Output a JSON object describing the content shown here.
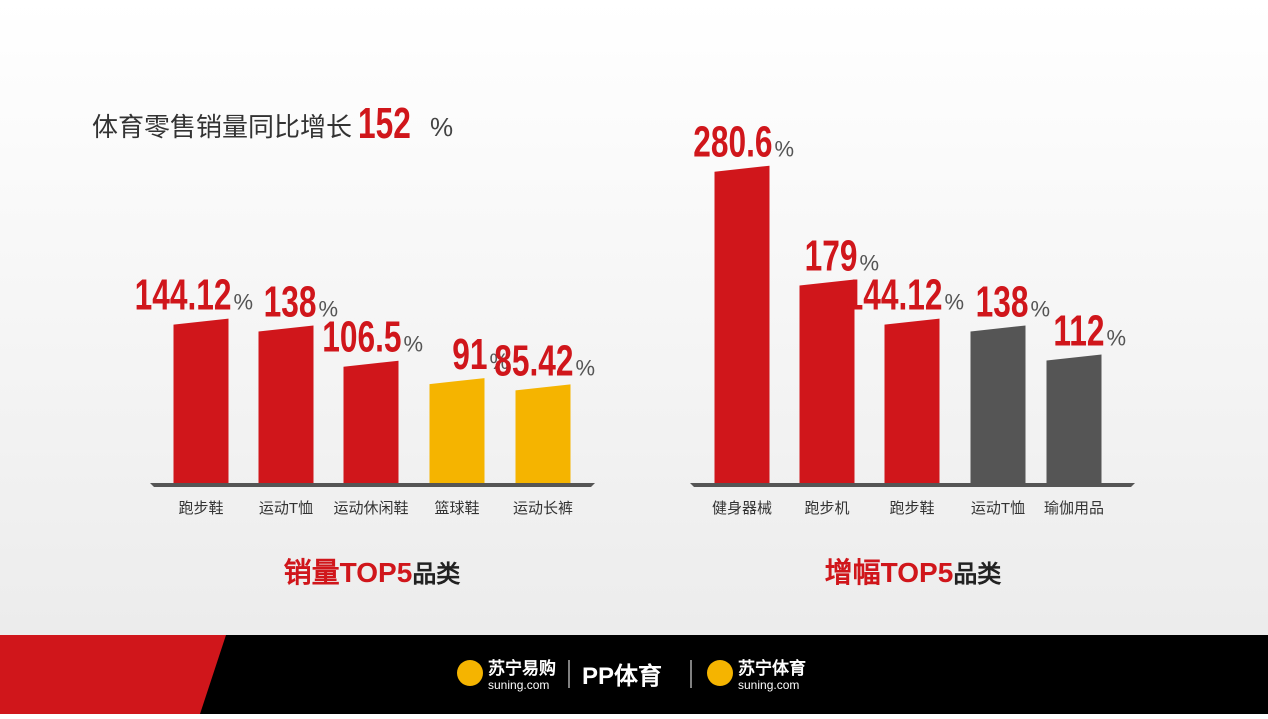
{
  "headline": {
    "text": "体育零售销量同比增长",
    "value": 152,
    "unit": "%"
  },
  "chart_data": [
    {
      "type": "bar",
      "title": "销量TOP5",
      "title_suffix": "品类",
      "categories": [
        "跑步鞋",
        "运动T恤",
        "运动休闲鞋",
        "篮球鞋",
        "运动长裤"
      ],
      "values": [
        144.12,
        138,
        106.5,
        91,
        85.42
      ],
      "value_unit": "%",
      "colors": [
        "#d0161b",
        "#d0161b",
        "#d0161b",
        "#f5b400",
        "#f5b400"
      ]
    },
    {
      "type": "bar",
      "title": "增幅TOP5",
      "title_suffix": "品类",
      "categories": [
        "健身器械",
        "跑步机",
        "跑步鞋",
        "运动T恤",
        "瑜伽用品"
      ],
      "values": [
        280.6,
        179,
        144.12,
        138,
        112
      ],
      "value_unit": "%",
      "colors": [
        "#d0161b",
        "#d0161b",
        "#d0161b",
        "#555555",
        "#555555"
      ]
    }
  ],
  "footer": {
    "brands": [
      {
        "name": "苏宁易购",
        "domain": "suning.com"
      },
      {
        "name": "PP体育"
      },
      {
        "name": "苏宁体育",
        "domain": "suning.com"
      }
    ]
  }
}
